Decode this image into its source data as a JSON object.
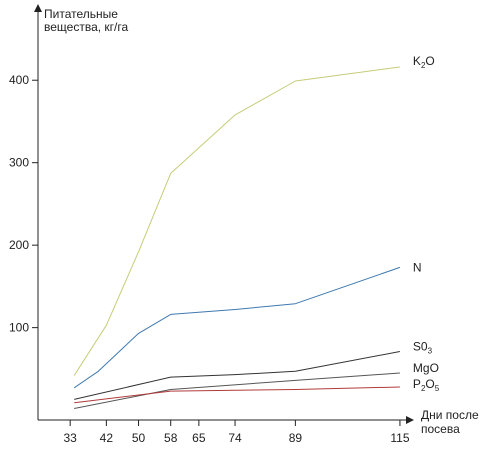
{
  "chart_data": {
    "type": "line",
    "ylabel_lines": [
      "Питательные",
      "вещества, кг/га"
    ],
    "xlabel_lines": [
      "Дни после",
      "посева"
    ],
    "x_ticks": [
      33,
      42,
      50,
      58,
      65,
      74,
      89,
      115
    ],
    "y_ticks": [
      100,
      200,
      300,
      400
    ],
    "xlim": [
      25,
      118
    ],
    "ylim": [
      -12,
      490
    ],
    "grid": false,
    "series": [
      {
        "name": "K2O",
        "label_main": "K",
        "label_sub": "2",
        "label_tail": "O",
        "color": "#c5cc78",
        "points": [
          [
            34,
            42
          ],
          [
            42,
            103
          ],
          [
            50,
            192
          ],
          [
            58,
            287
          ],
          [
            74,
            358
          ],
          [
            89,
            399
          ],
          [
            115,
            416
          ]
        ]
      },
      {
        "name": "N",
        "label_main": "N",
        "label_sub": "",
        "label_tail": "",
        "color": "#3f79b0",
        "points": [
          [
            34,
            27
          ],
          [
            40,
            47
          ],
          [
            50,
            93
          ],
          [
            58,
            116
          ],
          [
            74,
            122
          ],
          [
            89,
            129
          ],
          [
            115,
            173
          ]
        ]
      },
      {
        "name": "SO3",
        "label_main": "S0",
        "label_sub": "3",
        "label_tail": "",
        "color": "#333333",
        "points": [
          [
            34,
            13
          ],
          [
            58,
            40
          ],
          [
            74,
            43
          ],
          [
            89,
            47
          ],
          [
            115,
            71
          ]
        ]
      },
      {
        "name": "MgO",
        "label_main": "MgO",
        "label_sub": "",
        "label_tail": "",
        "color": "#555555",
        "points": [
          [
            34,
            2
          ],
          [
            58,
            25
          ],
          [
            89,
            36
          ],
          [
            115,
            45
          ]
        ]
      },
      {
        "name": "P2O5",
        "label_main": "P",
        "label_sub": "2",
        "label_tail": "O",
        "label_sub2": "5",
        "color": "#b23a3a",
        "points": [
          [
            34,
            9
          ],
          [
            58,
            23
          ],
          [
            89,
            25
          ],
          [
            115,
            28
          ]
        ]
      }
    ]
  }
}
